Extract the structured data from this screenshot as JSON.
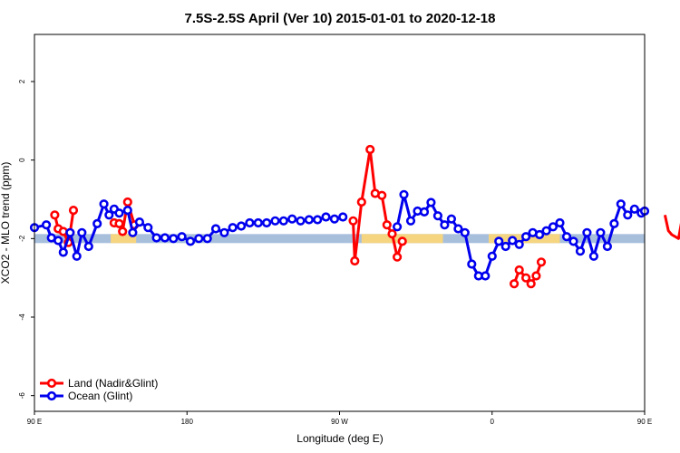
{
  "chart_data": {
    "type": "line",
    "title": "7.5S-2.5S April (Ver 10)   2015-01-01 to 2020-12-18",
    "xlabel": "Longitude (deg E)",
    "ylabel": "XCO2 - MLO trend (ppm)",
    "xlim": [
      90,
      450
    ],
    "ylim": [
      -6.4,
      3.2
    ],
    "x_ticks": [
      {
        "value": 90,
        "label": "90 E"
      },
      {
        "value": 180,
        "label": "180"
      },
      {
        "value": 270,
        "label": "90 W"
      },
      {
        "value": 360,
        "label": "0"
      },
      {
        "value": 450,
        "label": "90 E"
      },
      {
        "value": 540,
        "label": "180"
      }
    ],
    "y_ticks": [
      {
        "value": 2,
        "label": "2"
      },
      {
        "value": 0,
        "label": "0"
      },
      {
        "value": -2,
        "label": "-2"
      },
      {
        "value": -4,
        "label": "-4"
      },
      {
        "value": -6,
        "label": "-6"
      }
    ],
    "legend_position": "bottom-left",
    "background_bands": [
      {
        "y": -2.0,
        "x_range": [
          90,
          540
        ],
        "color": "#a8bfdc"
      },
      {
        "y": -2.0,
        "x_range": [
          135,
          150
        ],
        "color": "#f5d580"
      },
      {
        "y": -2.0,
        "x_range": [
          283,
          331
        ],
        "color": "#f5d580"
      },
      {
        "y": -2.0,
        "x_range": [
          358,
          400
        ],
        "color": "#f5d580"
      },
      {
        "y": -2.0,
        "x_range": [
          496,
          510
        ],
        "color": "#f5d580"
      }
    ],
    "series": [
      {
        "name": "Land (Nadir&Glint)",
        "color": "#ff0000",
        "segments": [
          [
            [
              102,
              -1.4
            ],
            [
              104,
              -1.75
            ],
            [
              107,
              -1.82
            ],
            [
              110,
              -2.1
            ],
            [
              111,
              -1.85
            ],
            [
              113,
              -1.28
            ]
          ],
          [
            [
              137,
              -1.6
            ],
            [
              140,
              -1.62
            ],
            [
              142,
              -1.82
            ],
            [
              145,
              -1.07
            ],
            [
              149,
              -1.65
            ]
          ],
          [
            [
              278,
              -1.55
            ],
            [
              279,
              -2.57
            ],
            [
              283,
              -1.07
            ],
            [
              288,
              0.27
            ],
            [
              291,
              -0.85
            ],
            [
              295,
              -0.9
            ],
            [
              298,
              -1.65
            ],
            [
              301,
              -1.88
            ],
            [
              304,
              -2.47
            ],
            [
              307,
              -2.07
            ]
          ],
          [
            [
              373,
              -3.15
            ],
            [
              376,
              -2.8
            ],
            [
              380,
              -3.0
            ],
            [
              383,
              -3.15
            ],
            [
              386,
              -2.95
            ],
            [
              389,
              -2.6
            ]
          ],
          [
            [
              462,
              -1.4
            ],
            [
              464,
              -1.8
            ],
            [
              466,
              -1.9
            ],
            [
              470,
              -2.0
            ],
            [
              473,
              -1.28
            ]
          ],
          [
            [
              489,
              -1.55
            ],
            [
              492,
              -1.9
            ],
            [
              495,
              -1.05
            ],
            [
              498,
              -1.65
            ]
          ]
        ]
      },
      {
        "name": "Ocean (Glint)",
        "color": "#0000ee",
        "segments": [
          [
            [
              90,
              -1.72
            ],
            [
              97,
              -1.65
            ],
            [
              100,
              -1.98
            ],
            [
              104,
              -2.05
            ],
            [
              107,
              -2.35
            ],
            [
              111,
              -1.85
            ],
            [
              115,
              -2.45
            ],
            [
              118,
              -1.85
            ],
            [
              122,
              -2.2
            ],
            [
              127,
              -1.62
            ],
            [
              131,
              -1.12
            ],
            [
              134,
              -1.4
            ],
            [
              137,
              -1.25
            ],
            [
              140,
              -1.35
            ],
            [
              145,
              -1.28
            ],
            [
              148,
              -1.85
            ],
            [
              152,
              -1.58
            ],
            [
              157,
              -1.72
            ],
            [
              162,
              -1.98
            ],
            [
              167,
              -1.98
            ],
            [
              172,
              -2.0
            ],
            [
              177,
              -1.95
            ],
            [
              182,
              -2.07
            ],
            [
              187,
              -2.0
            ],
            [
              192,
              -2.0
            ],
            [
              197,
              -1.75
            ],
            [
              202,
              -1.85
            ],
            [
              207,
              -1.72
            ],
            [
              212,
              -1.68
            ],
            [
              217,
              -1.6
            ],
            [
              222,
              -1.6
            ],
            [
              227,
              -1.6
            ],
            [
              232,
              -1.55
            ],
            [
              237,
              -1.55
            ],
            [
              242,
              -1.5
            ],
            [
              247,
              -1.55
            ],
            [
              252,
              -1.52
            ],
            [
              257,
              -1.52
            ],
            [
              262,
              -1.45
            ],
            [
              267,
              -1.5
            ],
            [
              272,
              -1.45
            ]
          ],
          [
            [
              304,
              -1.7
            ],
            [
              308,
              -0.88
            ],
            [
              312,
              -1.55
            ],
            [
              316,
              -1.3
            ],
            [
              320,
              -1.32
            ],
            [
              324,
              -1.08
            ],
            [
              328,
              -1.42
            ],
            [
              332,
              -1.65
            ],
            [
              336,
              -1.5
            ],
            [
              340,
              -1.75
            ],
            [
              344,
              -1.85
            ],
            [
              348,
              -2.65
            ],
            [
              352,
              -2.95
            ],
            [
              356,
              -2.95
            ],
            [
              360,
              -2.45
            ],
            [
              364,
              -2.07
            ],
            [
              368,
              -2.2
            ],
            [
              372,
              -2.05
            ],
            [
              376,
              -2.15
            ],
            [
              380,
              -1.95
            ],
            [
              384,
              -1.85
            ],
            [
              388,
              -1.9
            ],
            [
              392,
              -1.8
            ],
            [
              396,
              -1.7
            ],
            [
              400,
              -1.6
            ],
            [
              404,
              -1.95
            ],
            [
              408,
              -2.07
            ],
            [
              412,
              -2.32
            ],
            [
              416,
              -1.85
            ],
            [
              420,
              -2.45
            ],
            [
              424,
              -1.85
            ],
            [
              428,
              -2.2
            ],
            [
              432,
              -1.62
            ],
            [
              436,
              -1.12
            ],
            [
              440,
              -1.4
            ],
            [
              444,
              -1.25
            ],
            [
              448,
              -1.35
            ],
            [
              450,
              -1.3
            ]
          ]
        ]
      }
    ]
  }
}
